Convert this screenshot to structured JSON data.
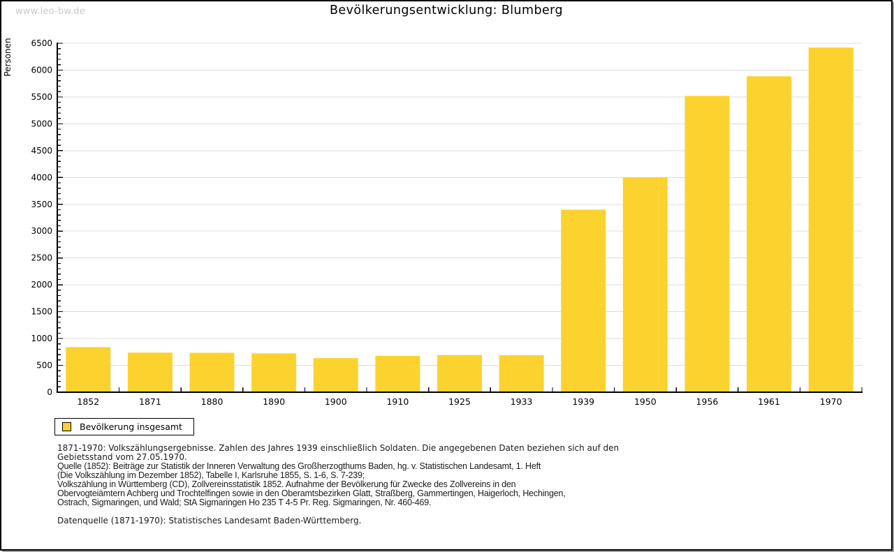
{
  "page": {
    "watermark": "www.leo-bw.de",
    "title": "Bevölkerungsentwicklung: Blumberg"
  },
  "chart_data": {
    "type": "bar",
    "title": "Bevölkerungsentwicklung: Blumberg",
    "xlabel": "",
    "ylabel": "Personen",
    "categories": [
      "1852",
      "1871",
      "1880",
      "1890",
      "1900",
      "1910",
      "1925",
      "1933",
      "1939",
      "1950",
      "1956",
      "1961",
      "1970"
    ],
    "series": [
      {
        "name": "Bevölkerung insgesamt",
        "color": "#FCD32E",
        "values": [
          840,
          737,
          735,
          724,
          634,
          676,
          692,
          689,
          3400,
          4005,
          5520,
          5885,
          6420
        ]
      }
    ],
    "ylim": [
      0,
      6500
    ],
    "ytick_step": 500,
    "yminor_step": 100,
    "grid": true,
    "legend_position": "bottom-left"
  },
  "legend": {
    "label": "Bevölkerung insgesamt"
  },
  "footnotes": {
    "lines": [
      "1871-1970: Volkszählungsergebnisse. Zahlen des Jahres 1939 einschließlich Soldaten. Die angegebenen Daten beziehen sich auf den",
      "Gebietsstand vom 27.05.1970.",
      "Quelle (1852): Beiträge zur Statistik der Inneren Verwaltung des Großherzogthums Baden, hg. v. Statistischen Landesamt, 1. Heft",
      "(Die Volkszählung im Dezember 1852), Tabelle I, Karlsruhe 1855, S. 1-6, S. 7-239;",
      "Volkszählung in Württemberg (CD), Zollvereinsstatistik 1852. Aufnahme der Bevölkerung für Zwecke des Zollvereins in den",
      "Obervogteiämtern Achberg und Trochtelfingen sowie in den Oberamtsbezirken Glatt, Straßberg, Gammertingen, Haigerloch, Hechingen,",
      "Ostrach, Sigmaringen, und Wald; StA Sigmaringen Ho 235 T 4-5 Pr. Reg. Sigmaringen, Nr. 460-469.",
      "Datenquelle (1871-1970): Statistisches Landesamt Baden-Württemberg."
    ]
  },
  "colors": {
    "bar": "#FCD32E",
    "gridline": "#DCDCDC",
    "axis": "#000000",
    "watermark_text": "#C9C9C9"
  }
}
